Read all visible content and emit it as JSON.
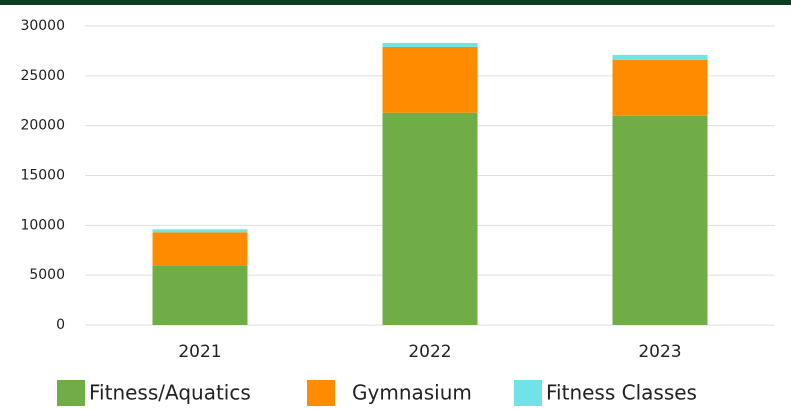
{
  "chart_data": {
    "type": "stacked_bar",
    "categories": [
      "2021",
      "2022",
      "2023"
    ],
    "series": [
      {
        "name": "Fitness/Aquatics",
        "color": "#70ad47",
        "values": [
          6000,
          21300,
          21000
        ]
      },
      {
        "name": "Gymnasium",
        "color": "#ff8c00",
        "values": [
          3300,
          6600,
          5600
        ]
      },
      {
        "name": "Fitness Classes",
        "color": "#6fe3e8",
        "values": [
          300,
          400,
          500
        ]
      }
    ],
    "ylim": [
      0,
      30000
    ],
    "yticks": [
      0,
      5000,
      10000,
      15000,
      20000,
      25000,
      30000
    ],
    "grid": true,
    "legend": "bottom"
  }
}
